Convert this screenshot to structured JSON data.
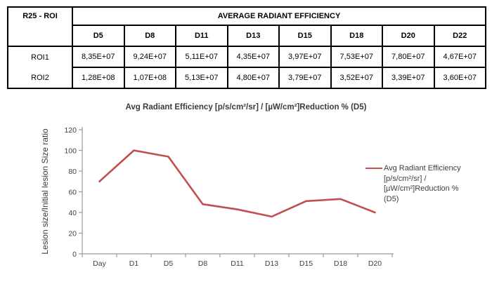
{
  "table": {
    "corner_label": "R25 - ROI",
    "header": "AVERAGE RADIANT EFFICIENCY",
    "columns": [
      "D5",
      "D8",
      "D11",
      "D13",
      "D15",
      "D18",
      "D20",
      "D22"
    ],
    "rows": [
      {
        "label": "ROI1",
        "values": [
          "8,35E+07",
          "9,24E+07",
          "5,11E+07",
          "4,35E+07",
          "3,97E+07",
          "7,53E+07",
          "7,80E+07",
          "4,67E+07"
        ]
      },
      {
        "label": "ROI2",
        "values": [
          "1,28E+08",
          "1,07E+08",
          "5,13E+07",
          "4,80E+07",
          "3,79E+07",
          "3,52E+07",
          "3,39E+07",
          "3,60E+07"
        ]
      }
    ]
  },
  "chart_data": {
    "type": "line",
    "title": "Avg Radiant Efficiency [p/s/cm²/sr] / [µW/cm²]Reduction % (D5)",
    "ylabel": "Lesion size/Initial lesion Size ratio",
    "xlabel": "",
    "categories": [
      "Day",
      "D1",
      "D5",
      "D8",
      "D11",
      "D13",
      "D15",
      "D18",
      "D20"
    ],
    "series": [
      {
        "name": "Avg Radiant Efficiency [p/s/cm²/sr] / [µW/cm²]Reduction % (D5)",
        "color": "#C0504D",
        "values": [
          70,
          100,
          94,
          48,
          43,
          36,
          51,
          53,
          40
        ]
      }
    ],
    "ylim": [
      0,
      120
    ],
    "ytick_step": 20,
    "grid": false,
    "legend_position": "right",
    "legend_lines": [
      "Avg Radiant Efficiency",
      "[p/s/cm²/sr] /",
      "[µW/cm²]Reduction %",
      "(D5)"
    ],
    "colors": {
      "line": "#C0504D",
      "axis": "#9a9a9a",
      "text": "#3f3f3f"
    }
  }
}
